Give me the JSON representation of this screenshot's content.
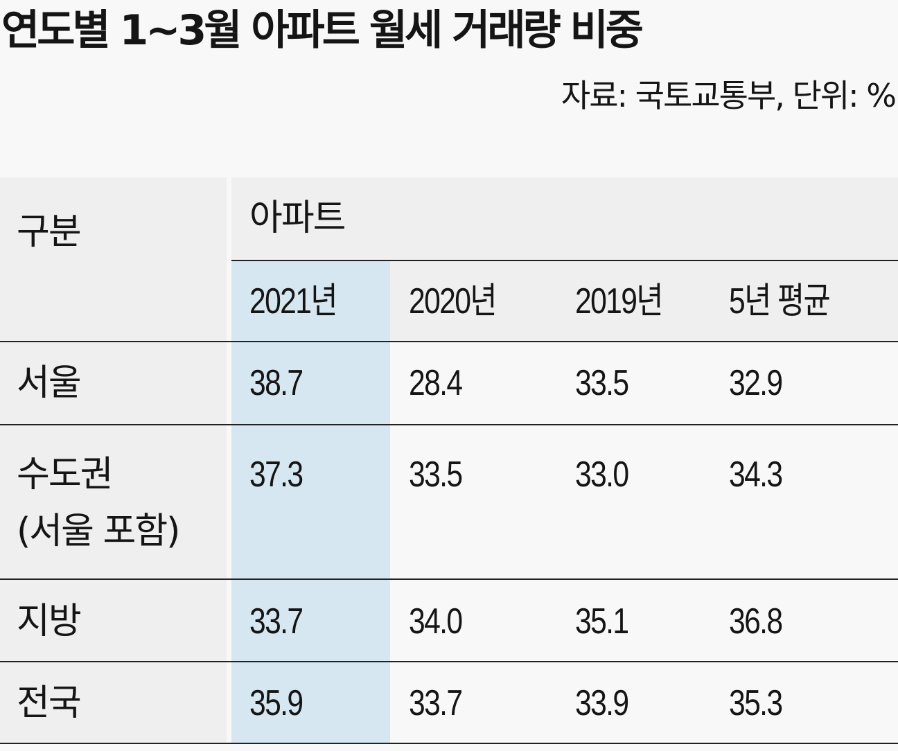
{
  "title": "연도별 1~3월 아파트 월세 거래량 비중",
  "source": "자료: 국토교통부,  단위: %",
  "chart_data": {
    "type": "table",
    "header": {
      "row_label": "구분",
      "group": "아파트",
      "columns": [
        "2021년",
        "2020년",
        "2019년",
        "5년 평균"
      ]
    },
    "rows": [
      {
        "name": "서울",
        "values": [
          "38.7",
          "28.4",
          "33.5",
          "32.9"
        ]
      },
      {
        "name": "수도권",
        "sub": "(서울 포함)",
        "values": [
          "37.3",
          "33.5",
          "33.0",
          "34.3"
        ]
      },
      {
        "name": "지방",
        "values": [
          "33.7",
          "34.0",
          "35.1",
          "36.8"
        ]
      },
      {
        "name": "전국",
        "values": [
          "35.9",
          "33.7",
          "33.9",
          "35.3"
        ]
      }
    ],
    "highlight_column": "2021년",
    "colors": {
      "header_bg": "#efefef",
      "label_bg": "#efefef",
      "highlight_bg": "#d6e7f1",
      "page_bg": "#f8f8f8",
      "rule": "#222222"
    }
  }
}
